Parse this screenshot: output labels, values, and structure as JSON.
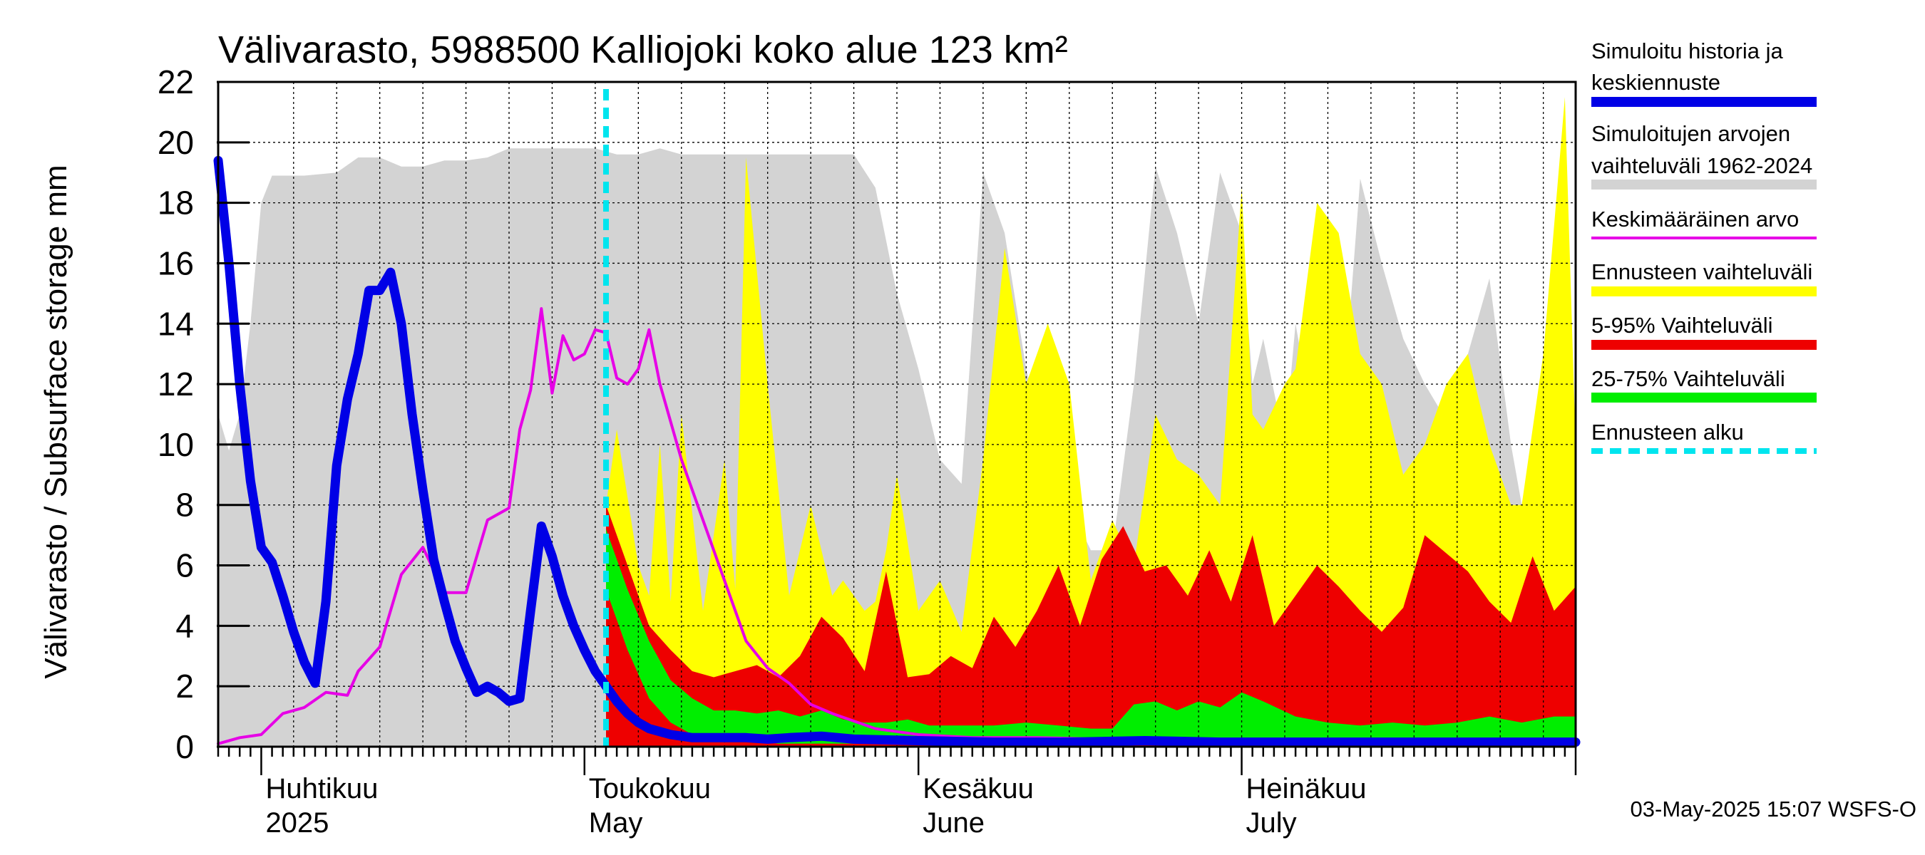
{
  "chart_data": {
    "type": "area",
    "title": "Välivarasto, 5988500 Kalliojoki koko alue 123 km²",
    "ylabel": "Välivarasto / Subsurface storage  mm",
    "ylim": [
      0,
      22
    ],
    "yticks": [
      0,
      2,
      4,
      6,
      8,
      10,
      12,
      14,
      16,
      18,
      20,
      22
    ],
    "grid": true,
    "legend_position": "right",
    "x_range": [
      "2025-03-28",
      "2025-08-01"
    ],
    "forecast_start": "2025-05-03",
    "month_labels": [
      {
        "date": "2025-04-01",
        "line1": "Huhtikuu",
        "line2": "2025"
      },
      {
        "date": "2025-05-01",
        "line1": "Toukokuu",
        "line2": "May"
      },
      {
        "date": "2025-06-01",
        "line1": "Kesäkuu",
        "line2": "June"
      },
      {
        "date": "2025-07-01",
        "line1": "Heinäkuu",
        "line2": "July"
      }
    ],
    "timestamp": "03-May-2025 15:07 WSFS-O",
    "legend": [
      {
        "key": "history",
        "label_lines": [
          "Simuloitu historia ja",
          "keskiennuste"
        ],
        "color": "#0000e6",
        "style": "thick"
      },
      {
        "key": "range",
        "label_lines": [
          "Simuloitujen arvojen",
          "vaihteluväli 1962-2024"
        ],
        "color": "#d3d3d3",
        "style": "thick"
      },
      {
        "key": "mean",
        "label_lines": [
          "Keskimääräinen arvo"
        ],
        "color": "#e600e6",
        "style": "thin"
      },
      {
        "key": "fc_range",
        "label_lines": [
          "Ennusteen vaihteluväli"
        ],
        "color": "#ffff00",
        "style": "thick"
      },
      {
        "key": "p5_95",
        "label_lines": [
          "5-95% Vaihteluväli"
        ],
        "color": "#ee0000",
        "style": "thick"
      },
      {
        "key": "p25_75",
        "label_lines": [
          "25-75% Vaihteluväli"
        ],
        "color": "#00ee00",
        "style": "thick"
      },
      {
        "key": "fc_start",
        "label_lines": [
          "Ennusteen alku"
        ],
        "color": "#00e5ee",
        "style": "dashed"
      }
    ],
    "series": {
      "hist_range": {
        "color": "#d3d3d3",
        "x": [
          "2025-03-28",
          "2025-03-29",
          "2025-03-30",
          "2025-03-31",
          "2025-04-01",
          "2025-04-02",
          "2025-04-03",
          "2025-04-05",
          "2025-04-08",
          "2025-04-10",
          "2025-04-12",
          "2025-04-14",
          "2025-04-16",
          "2025-04-18",
          "2025-04-20",
          "2025-04-22",
          "2025-04-24",
          "2025-04-26",
          "2025-04-28",
          "2025-04-30",
          "2025-05-02",
          "2025-05-04",
          "2025-05-06",
          "2025-05-08",
          "2025-05-10",
          "2025-05-12",
          "2025-05-14",
          "2025-05-16",
          "2025-05-18",
          "2025-05-20",
          "2025-05-22",
          "2025-05-24",
          "2025-05-26",
          "2025-05-28",
          "2025-05-30",
          "2025-06-01",
          "2025-06-02",
          "2025-06-03",
          "2025-06-05",
          "2025-06-07",
          "2025-06-09",
          "2025-06-11",
          "2025-06-13",
          "2025-06-15",
          "2025-06-17",
          "2025-06-19",
          "2025-06-21",
          "2025-06-23",
          "2025-06-25",
          "2025-06-27",
          "2025-06-29",
          "2025-07-01",
          "2025-07-02",
          "2025-07-03",
          "2025-07-05",
          "2025-07-06",
          "2025-07-08",
          "2025-07-10",
          "2025-07-12",
          "2025-07-14",
          "2025-07-16",
          "2025-07-18",
          "2025-07-20",
          "2025-07-22",
          "2025-07-24",
          "2025-07-26",
          "2025-07-27",
          "2025-07-29",
          "2025-07-31",
          "2025-08-01"
        ],
        "high": [
          11,
          9.8,
          11,
          14,
          18,
          18.9,
          18.9,
          18.9,
          19,
          19.5,
          19.5,
          19.2,
          19.2,
          19.4,
          19.4,
          19.5,
          19.8,
          19.8,
          19.8,
          19.8,
          19.8,
          19.6,
          19.6,
          19.8,
          19.6,
          19.6,
          19.6,
          19.6,
          19.6,
          19.6,
          19.6,
          19.6,
          19.6,
          18.5,
          15,
          12.5,
          11,
          9.5,
          8.7,
          19,
          17,
          12.5,
          9.5,
          8,
          6.5,
          6.5,
          12,
          19.2,
          17,
          14,
          19,
          17,
          12,
          13.5,
          10,
          14,
          10,
          9.5,
          18.8,
          16,
          13.5,
          12,
          10.8,
          13,
          15.5,
          10,
          8,
          8.5,
          20,
          8
        ],
        "low": [
          0,
          0,
          0,
          0,
          0,
          0,
          0,
          0,
          0,
          0,
          0,
          0,
          0,
          0,
          0,
          0,
          0,
          0,
          0,
          0,
          0,
          0,
          0,
          0,
          0,
          0,
          0,
          0,
          0,
          0,
          0,
          0,
          0,
          0,
          0,
          0,
          0,
          0,
          0,
          0,
          0,
          0,
          0,
          0,
          0,
          0,
          0,
          0,
          0,
          0,
          0,
          0,
          0,
          0,
          0,
          0,
          0,
          0,
          0,
          0,
          0,
          0,
          0,
          0,
          0,
          0,
          0,
          0,
          0,
          0
        ]
      },
      "fc_range": {
        "color": "#ffff00",
        "x": [
          "2025-05-03",
          "2025-05-04",
          "2025-05-06",
          "2025-05-07",
          "2025-05-08",
          "2025-05-09",
          "2025-05-10",
          "2025-05-12",
          "2025-05-14",
          "2025-05-15",
          "2025-05-16",
          "2025-05-18",
          "2025-05-20",
          "2025-05-22",
          "2025-05-24",
          "2025-05-25",
          "2025-05-26",
          "2025-05-27",
          "2025-05-28",
          "2025-05-29",
          "2025-05-30",
          "2025-06-01",
          "2025-06-03",
          "2025-06-05",
          "2025-06-07",
          "2025-06-09",
          "2025-06-11",
          "2025-06-13",
          "2025-06-15",
          "2025-06-17",
          "2025-06-19",
          "2025-06-21",
          "2025-06-23",
          "2025-06-25",
          "2025-06-27",
          "2025-06-29",
          "2025-07-01",
          "2025-07-02",
          "2025-07-03",
          "2025-07-05",
          "2025-07-06",
          "2025-07-08",
          "2025-07-10",
          "2025-07-12",
          "2025-07-14",
          "2025-07-16",
          "2025-07-18",
          "2025-07-20",
          "2025-07-22",
          "2025-07-24",
          "2025-07-26",
          "2025-07-27",
          "2025-07-29",
          "2025-07-31",
          "2025-08-01"
        ],
        "high": [
          8,
          10.5,
          6,
          5,
          10,
          4.8,
          11,
          4.5,
          9.5,
          5.2,
          19.5,
          12,
          5,
          8,
          5,
          5.5,
          5,
          4.5,
          4.8,
          6.5,
          9,
          4.5,
          5.5,
          3.8,
          9.5,
          16.5,
          12,
          14,
          12,
          5.5,
          7.5,
          6,
          11,
          9.5,
          9,
          8,
          18.5,
          11,
          10.5,
          12,
          12.5,
          18,
          17,
          13,
          12,
          9,
          10,
          12,
          13,
          10,
          8,
          8,
          13,
          21.5,
          10
        ],
        "low": [
          0,
          0,
          0,
          0,
          0,
          0,
          0,
          0,
          0,
          0,
          0,
          0,
          0,
          0,
          0,
          0,
          0,
          0,
          0,
          0,
          0,
          0,
          0,
          0,
          0,
          0,
          0,
          0,
          0,
          0,
          0,
          0,
          0,
          0,
          0,
          0,
          0,
          0,
          0,
          0,
          0,
          0,
          0,
          0,
          0,
          0,
          0,
          0,
          0,
          0,
          0,
          0,
          0,
          0,
          0
        ]
      },
      "p5_95": {
        "color": "#ee0000",
        "x": [
          "2025-05-03",
          "2025-05-05",
          "2025-05-07",
          "2025-05-09",
          "2025-05-11",
          "2025-05-13",
          "2025-05-15",
          "2025-05-17",
          "2025-05-19",
          "2025-05-21",
          "2025-05-23",
          "2025-05-25",
          "2025-05-27",
          "2025-05-29",
          "2025-05-31",
          "2025-06-02",
          "2025-06-04",
          "2025-06-06",
          "2025-06-08",
          "2025-06-10",
          "2025-06-12",
          "2025-06-14",
          "2025-06-16",
          "2025-06-18",
          "2025-06-20",
          "2025-06-22",
          "2025-06-24",
          "2025-06-26",
          "2025-06-28",
          "2025-06-30",
          "2025-07-02",
          "2025-07-04",
          "2025-07-06",
          "2025-07-08",
          "2025-07-10",
          "2025-07-12",
          "2025-07-14",
          "2025-07-16",
          "2025-07-18",
          "2025-07-20",
          "2025-07-22",
          "2025-07-24",
          "2025-07-26",
          "2025-07-28",
          "2025-07-30",
          "2025-08-01"
        ],
        "high": [
          8,
          6,
          4,
          3.2,
          2.5,
          2.3,
          2.5,
          2.7,
          2.3,
          3,
          4.3,
          3.6,
          2.5,
          5.8,
          2.3,
          2.4,
          3,
          2.6,
          4.3,
          3.3,
          4.5,
          6,
          4,
          6.2,
          7.3,
          5.8,
          6,
          5,
          6.5,
          4.8,
          7,
          4,
          5,
          6,
          5.3,
          4.5,
          3.8,
          4.6,
          7,
          6.4,
          5.8,
          4.8,
          4.1,
          6.3,
          4.5,
          5.3
        ],
        "low": [
          0,
          0,
          0,
          0,
          0,
          0,
          0,
          0,
          0,
          0,
          0,
          0,
          0,
          0,
          0,
          0,
          0,
          0,
          0,
          0,
          0,
          0,
          0,
          0,
          0,
          0,
          0,
          0,
          0,
          0,
          0,
          0,
          0,
          0,
          0,
          0,
          0,
          0,
          0,
          0,
          0,
          0,
          0,
          0,
          0,
          0
        ]
      },
      "p25_75": {
        "color": "#00ee00",
        "x": [
          "2025-05-03",
          "2025-05-05",
          "2025-05-07",
          "2025-05-09",
          "2025-05-11",
          "2025-05-13",
          "2025-05-15",
          "2025-05-17",
          "2025-05-19",
          "2025-05-21",
          "2025-05-23",
          "2025-05-25",
          "2025-05-27",
          "2025-05-29",
          "2025-05-31",
          "2025-06-02",
          "2025-06-05",
          "2025-06-08",
          "2025-06-11",
          "2025-06-14",
          "2025-06-17",
          "2025-06-19",
          "2025-06-21",
          "2025-06-23",
          "2025-06-25",
          "2025-06-27",
          "2025-06-29",
          "2025-07-01",
          "2025-07-03",
          "2025-07-06",
          "2025-07-09",
          "2025-07-12",
          "2025-07-15",
          "2025-07-18",
          "2025-07-21",
          "2025-07-24",
          "2025-07-27",
          "2025-07-30",
          "2025-08-01"
        ],
        "high": [
          7.2,
          5.2,
          3.5,
          2.2,
          1.6,
          1.2,
          1.2,
          1.1,
          1.2,
          1,
          1.2,
          0.9,
          0.8,
          0.8,
          0.9,
          0.7,
          0.7,
          0.7,
          0.8,
          0.7,
          0.6,
          0.6,
          1.4,
          1.5,
          1.2,
          1.5,
          1.3,
          1.8,
          1.5,
          1,
          0.8,
          0.7,
          0.8,
          0.7,
          0.8,
          1,
          0.8,
          1,
          1
        ],
        "low": [
          5.2,
          3.2,
          1.6,
          0.8,
          0.4,
          0.3,
          0.2,
          0.2,
          0.1,
          0.1,
          0.1,
          0.1,
          0.1,
          0.1,
          0.1,
          0.1,
          0.1,
          0.1,
          0.1,
          0.1,
          0.1,
          0.1,
          0.1,
          0.1,
          0.1,
          0.1,
          0.1,
          0.1,
          0.1,
          0.1,
          0.1,
          0.1,
          0.1,
          0.1,
          0.1,
          0.1,
          0.1,
          0.1,
          0.1
        ]
      },
      "mean": {
        "color": "#e600e6",
        "x": [
          "2025-03-28",
          "2025-03-30",
          "2025-04-01",
          "2025-04-03",
          "2025-04-05",
          "2025-04-07",
          "2025-04-09",
          "2025-04-10",
          "2025-04-12",
          "2025-04-14",
          "2025-04-16",
          "2025-04-18",
          "2025-04-20",
          "2025-04-22",
          "2025-04-24",
          "2025-04-25",
          "2025-04-26",
          "2025-04-27",
          "2025-04-28",
          "2025-04-29",
          "2025-04-30",
          "2025-05-01",
          "2025-05-02",
          "2025-05-03",
          "2025-05-04",
          "2025-05-05",
          "2025-05-06",
          "2025-05-07",
          "2025-05-08",
          "2025-05-10",
          "2025-05-12",
          "2025-05-14",
          "2025-05-16",
          "2025-05-18",
          "2025-05-20",
          "2025-05-22",
          "2025-05-24",
          "2025-05-28",
          "2025-06-01",
          "2025-06-06",
          "2025-06-12",
          "2025-06-18",
          "2025-06-25",
          "2025-07-01",
          "2025-07-08",
          "2025-07-15",
          "2025-07-22",
          "2025-08-01"
        ],
        "values": [
          0.1,
          0.3,
          0.4,
          1.1,
          1.3,
          1.8,
          1.7,
          2.5,
          3.3,
          5.7,
          6.6,
          5.1,
          5.1,
          7.5,
          7.9,
          10.5,
          11.8,
          14.5,
          11.7,
          13.6,
          12.8,
          13,
          13.8,
          13.7,
          12.2,
          12,
          12.5,
          13.8,
          12,
          9.5,
          7.5,
          5.5,
          3.5,
          2.6,
          2.1,
          1.4,
          1.1,
          0.6,
          0.4,
          0.3,
          0.3,
          0.25,
          0.2,
          0.2,
          0.15,
          0.15,
          0.15,
          0.15
        ]
      },
      "history_forecast": {
        "color": "#0000e6",
        "x": [
          "2025-03-28",
          "2025-03-29",
          "2025-03-30",
          "2025-03-31",
          "2025-04-01",
          "2025-04-02",
          "2025-04-03",
          "2025-04-04",
          "2025-04-05",
          "2025-04-06",
          "2025-04-07",
          "2025-04-08",
          "2025-04-09",
          "2025-04-10",
          "2025-04-11",
          "2025-04-12",
          "2025-04-13",
          "2025-04-14",
          "2025-04-15",
          "2025-04-16",
          "2025-04-17",
          "2025-04-18",
          "2025-04-19",
          "2025-04-20",
          "2025-04-21",
          "2025-04-22",
          "2025-04-23",
          "2025-04-24",
          "2025-04-25",
          "2025-04-26",
          "2025-04-27",
          "2025-04-28",
          "2025-04-29",
          "2025-04-30",
          "2025-05-01",
          "2025-05-02",
          "2025-05-03",
          "2025-05-04",
          "2025-05-05",
          "2025-05-06",
          "2025-05-07",
          "2025-05-08",
          "2025-05-09",
          "2025-05-10",
          "2025-05-11",
          "2025-05-12",
          "2025-05-14",
          "2025-05-16",
          "2025-05-18",
          "2025-05-20",
          "2025-05-23",
          "2025-05-26",
          "2025-06-01",
          "2025-06-08",
          "2025-06-15",
          "2025-06-22",
          "2025-06-29",
          "2025-07-06",
          "2025-07-13",
          "2025-07-20",
          "2025-07-27",
          "2025-08-01"
        ],
        "values": [
          19.4,
          16,
          12,
          8.8,
          6.6,
          6.1,
          5,
          3.8,
          2.8,
          2.1,
          4.8,
          9.3,
          11.5,
          13,
          15.1,
          15.1,
          15.7,
          14,
          11,
          8.5,
          6.2,
          4.8,
          3.5,
          2.6,
          1.8,
          2,
          1.8,
          1.5,
          1.6,
          4.5,
          7.3,
          6.3,
          5,
          4,
          3.2,
          2.5,
          2,
          1.5,
          1.1,
          0.8,
          0.6,
          0.5,
          0.4,
          0.35,
          0.3,
          0.3,
          0.3,
          0.3,
          0.25,
          0.3,
          0.35,
          0.25,
          0.2,
          0.15,
          0.15,
          0.2,
          0.15,
          0.15,
          0.15,
          0.15,
          0.15,
          0.15
        ]
      }
    }
  }
}
